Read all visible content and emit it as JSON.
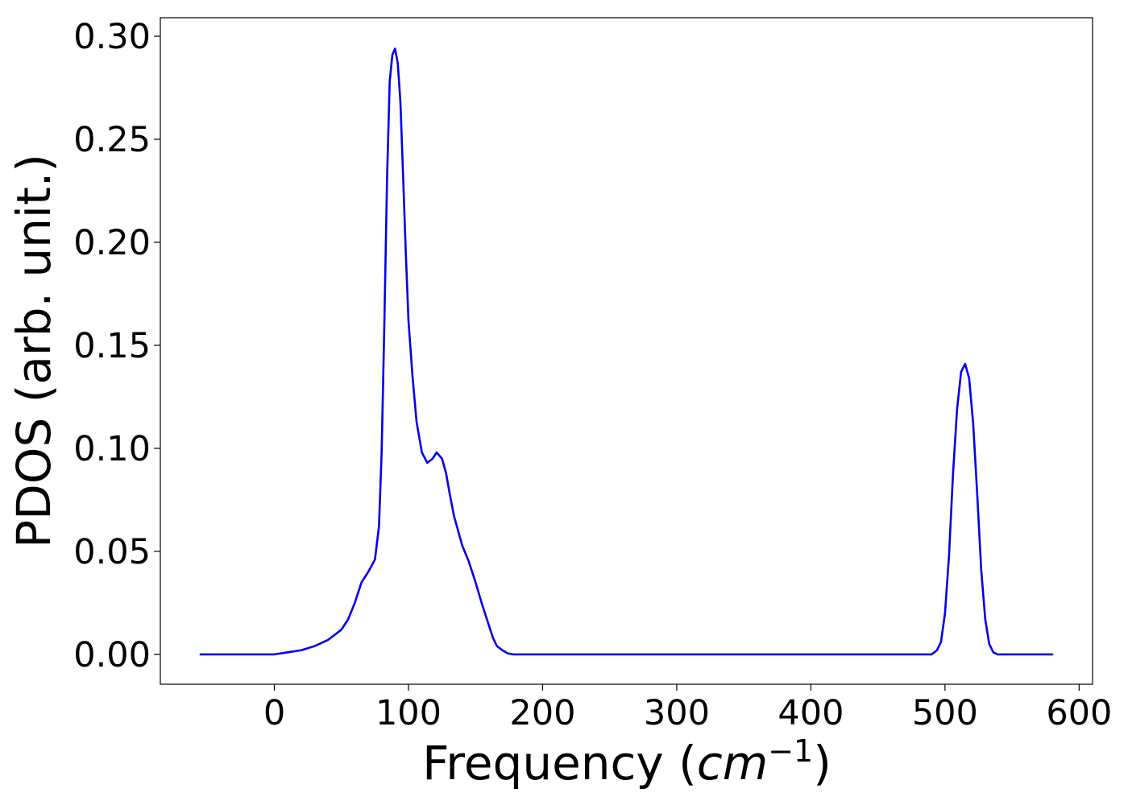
{
  "chart_data": {
    "type": "line",
    "title": "",
    "xlabel_prefix": "Frequency (",
    "xlabel_math": "cm",
    "xlabel_superscript": "−1",
    "xlabel_suffix": ")",
    "ylabel": "PDOS (arb. unit.)",
    "xlim": [
      -85,
      610
    ],
    "ylim": [
      -0.0145,
      0.309
    ],
    "xticks": [
      0,
      100,
      200,
      300,
      400,
      500,
      600
    ],
    "xtick_labels": [
      "0",
      "100",
      "200",
      "300",
      "400",
      "500",
      "600"
    ],
    "yticks": [
      0.0,
      0.05,
      0.1,
      0.15,
      0.2,
      0.25,
      0.3
    ],
    "ytick_labels": [
      "0.00",
      "0.05",
      "0.10",
      "0.15",
      "0.20",
      "0.25",
      "0.30"
    ],
    "grid": false,
    "legend": "none",
    "series": [
      {
        "color": "#0000ee",
        "x": [
          -55,
          -40,
          -20,
          0,
          10,
          20,
          30,
          40,
          50,
          55,
          60,
          65,
          70,
          75,
          78,
          80,
          82,
          84,
          86,
          88,
          90,
          92,
          94,
          96,
          98,
          100,
          103,
          106,
          110,
          114,
          118,
          121,
          125,
          128,
          131,
          134,
          137,
          140,
          145,
          150,
          155,
          160,
          163,
          166,
          170,
          174,
          178,
          185,
          200,
          250,
          300,
          350,
          400,
          450,
          490,
          494,
          497,
          500,
          503,
          506,
          509,
          512,
          515,
          518,
          521,
          524,
          527,
          530,
          533,
          536,
          539,
          542,
          546,
          550,
          560,
          580
        ],
        "y": [
          0.0,
          0.0,
          0.0,
          0.0,
          0.001,
          0.002,
          0.004,
          0.007,
          0.012,
          0.017,
          0.025,
          0.035,
          0.04,
          0.046,
          0.062,
          0.098,
          0.16,
          0.23,
          0.278,
          0.291,
          0.294,
          0.287,
          0.268,
          0.232,
          0.195,
          0.162,
          0.135,
          0.113,
          0.098,
          0.093,
          0.095,
          0.098,
          0.095,
          0.088,
          0.077,
          0.067,
          0.06,
          0.053,
          0.045,
          0.035,
          0.024,
          0.014,
          0.008,
          0.004,
          0.002,
          0.0005,
          0.0,
          0.0,
          0.0,
          0.0,
          0.0,
          0.0,
          0.0,
          0.0,
          0.0,
          0.002,
          0.006,
          0.02,
          0.048,
          0.088,
          0.119,
          0.137,
          0.141,
          0.134,
          0.112,
          0.078,
          0.041,
          0.017,
          0.005,
          0.001,
          0.0,
          0.0,
          0.0,
          0.0,
          0.0,
          0.0
        ]
      }
    ]
  }
}
